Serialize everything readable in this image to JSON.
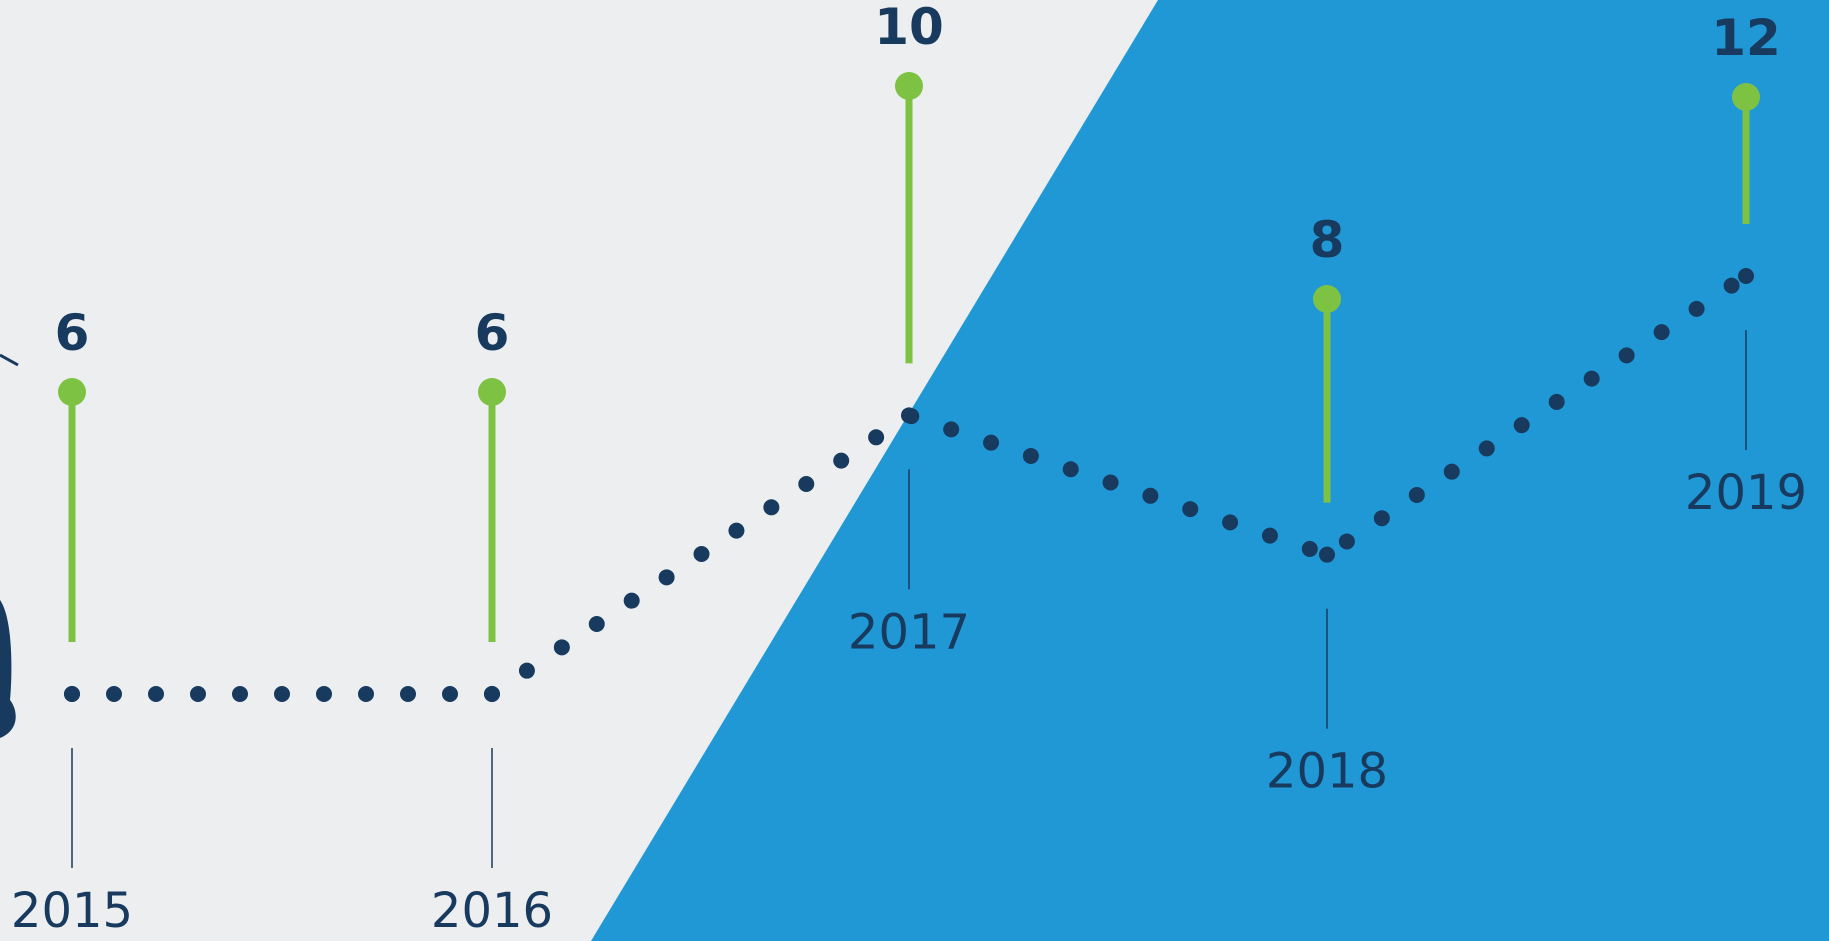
{
  "chart_data": {
    "type": "line",
    "categories": [
      "2015",
      "2016",
      "2017",
      "2018",
      "2019"
    ],
    "values": [
      6,
      6,
      10,
      8,
      12
    ],
    "color": "#173a5e",
    "stem_color": "#7dc242"
  }
}
